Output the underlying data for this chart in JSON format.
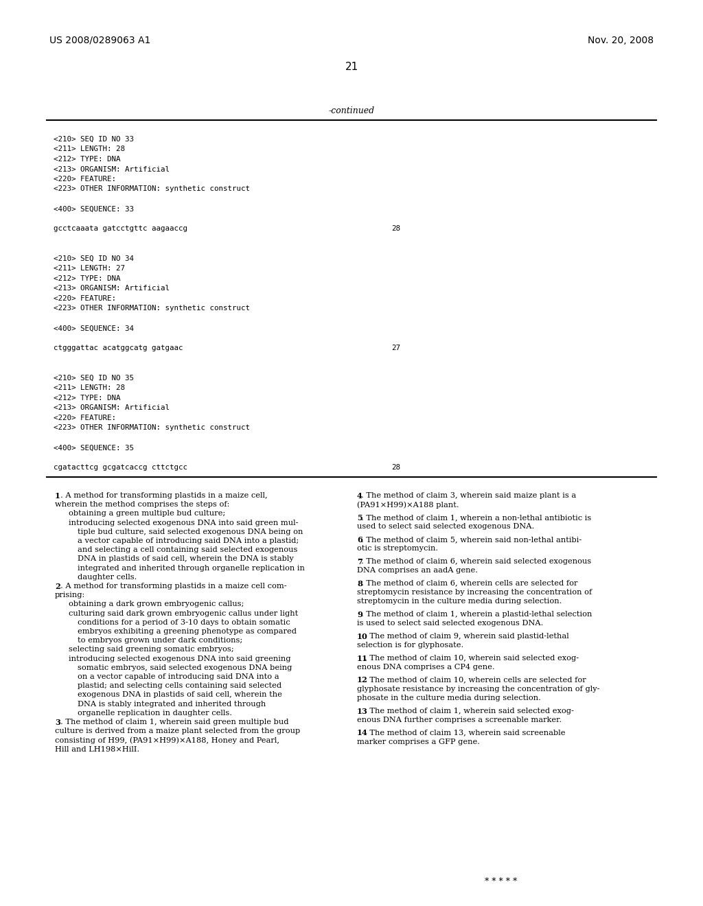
{
  "page_width": 10.24,
  "page_height": 13.2,
  "bg_color": "#ffffff",
  "header_left": "US 2008/0289063 A1",
  "header_right": "Nov. 20, 2008",
  "page_number": "21",
  "continued_label": "-continued",
  "mono_lines": [
    {
      "text": "<210> SEQ ID NO 33",
      "seq_num": ""
    },
    {
      "text": "<211> LENGTH: 28",
      "seq_num": ""
    },
    {
      "text": "<212> TYPE: DNA",
      "seq_num": ""
    },
    {
      "text": "<213> ORGANISM: Artificial",
      "seq_num": ""
    },
    {
      "text": "<220> FEATURE:",
      "seq_num": ""
    },
    {
      "text": "<223> OTHER INFORMATION: synthetic construct",
      "seq_num": ""
    },
    {
      "text": "",
      "seq_num": ""
    },
    {
      "text": "<400> SEQUENCE: 33",
      "seq_num": ""
    },
    {
      "text": "",
      "seq_num": ""
    },
    {
      "text": "gcctcaaata gatcctgttc aagaaccg",
      "seq_num": "28"
    },
    {
      "text": "",
      "seq_num": ""
    },
    {
      "text": "",
      "seq_num": ""
    },
    {
      "text": "<210> SEQ ID NO 34",
      "seq_num": ""
    },
    {
      "text": "<211> LENGTH: 27",
      "seq_num": ""
    },
    {
      "text": "<212> TYPE: DNA",
      "seq_num": ""
    },
    {
      "text": "<213> ORGANISM: Artificial",
      "seq_num": ""
    },
    {
      "text": "<220> FEATURE:",
      "seq_num": ""
    },
    {
      "text": "<223> OTHER INFORMATION: synthetic construct",
      "seq_num": ""
    },
    {
      "text": "",
      "seq_num": ""
    },
    {
      "text": "<400> SEQUENCE: 34",
      "seq_num": ""
    },
    {
      "text": "",
      "seq_num": ""
    },
    {
      "text": "ctgggattac acatggcatg gatgaac",
      "seq_num": "27"
    },
    {
      "text": "",
      "seq_num": ""
    },
    {
      "text": "",
      "seq_num": ""
    },
    {
      "text": "<210> SEQ ID NO 35",
      "seq_num": ""
    },
    {
      "text": "<211> LENGTH: 28",
      "seq_num": ""
    },
    {
      "text": "<212> TYPE: DNA",
      "seq_num": ""
    },
    {
      "text": "<213> ORGANISM: Artificial",
      "seq_num": ""
    },
    {
      "text": "<220> FEATURE:",
      "seq_num": ""
    },
    {
      "text": "<223> OTHER INFORMATION: synthetic construct",
      "seq_num": ""
    },
    {
      "text": "",
      "seq_num": ""
    },
    {
      "text": "<400> SEQUENCE: 35",
      "seq_num": ""
    },
    {
      "text": "",
      "seq_num": ""
    },
    {
      "text": "cgatacttcg gcgatcaccg cttctgcc",
      "seq_num": "28"
    }
  ],
  "left_claims": [
    {
      "type": "claim_start",
      "num": "1",
      "lines": [
        ". A method for transforming plastids in a maize cell,",
        "wherein the method comprises the steps of:"
      ]
    },
    {
      "type": "indent1",
      "lines": [
        "obtaining a green multiple bud culture;"
      ]
    },
    {
      "type": "indent1_wrap",
      "lines": [
        "introducing selected exogenous DNA into said green mul-",
        "tiple bud culture, said selected exogenous DNA being on",
        "a vector capable of introducing said DNA into a plastid;",
        "and selecting a cell containing said selected exogenous",
        "DNA in plastids of said cell, wherein the DNA is stably",
        "integrated and inherited through organelle replication in",
        "daughter cells."
      ]
    },
    {
      "type": "claim_start",
      "num": "2",
      "lines": [
        ". A method for transforming plastids in a maize cell com-",
        "prising:"
      ]
    },
    {
      "type": "indent1",
      "lines": [
        "obtaining a dark grown embryogenic callus;"
      ]
    },
    {
      "type": "indent1_wrap",
      "lines": [
        "culturing said dark grown embryogenic callus under light",
        "conditions for a period of 3-10 days to obtain somatic",
        "embryos exhibiting a greening phenotype as compared",
        "to embryos grown under dark conditions;"
      ]
    },
    {
      "type": "indent1",
      "lines": [
        "selecting said greening somatic embryos;"
      ]
    },
    {
      "type": "indent1_wrap",
      "lines": [
        "introducing selected exogenous DNA into said greening",
        "somatic embryos, said selected exogenous DNA being",
        "on a vector capable of introducing said DNA into a",
        "plastid; and selecting cells containing said selected",
        "exogenous DNA in plastids of said cell, wherein the",
        "DNA is stably integrated and inherited through",
        "organelle replication in daughter cells."
      ]
    },
    {
      "type": "claim_start_wrap",
      "num": "3",
      "lines": [
        ". The method of claim 1, wherein said green multiple bud",
        "culture is derived from a maize plant selected from the group",
        "consisting of H99, (PA91×H99)×A188, Honey and Pearl,",
        "Hill and LH198×HilI."
      ]
    }
  ],
  "right_claims": [
    {
      "num": "4",
      "lines": [
        ". The method of claim 3, wherein said maize plant is a",
        "(PA91×H99)×A188 plant."
      ]
    },
    {
      "num": "5",
      "lines": [
        ". The method of claim 1, wherein a non-lethal antibiotic is",
        "used to select said selected exogenous DNA."
      ]
    },
    {
      "num": "6",
      "lines": [
        ". The method of claim 5, wherein said non-lethal antibi-",
        "otic is streptomycin."
      ]
    },
    {
      "num": "7",
      "lines": [
        ". The method of claim 6, wherein said selected exogenous",
        "DNA comprises an aadA gene."
      ]
    },
    {
      "num": "8",
      "lines": [
        ". The method of claim 6, wherein cells are selected for",
        "streptomycin resistance by increasing the concentration of",
        "streptomycin in the culture media during selection."
      ]
    },
    {
      "num": "9",
      "lines": [
        ". The method of claim 1, wherein a plastid-lethal selection",
        "is used to select said selected exogenous DNA."
      ]
    },
    {
      "num": "10",
      "lines": [
        ". The method of claim 9, wherein said plastid-lethal",
        "selection is for glyphosate."
      ]
    },
    {
      "num": "11",
      "lines": [
        ". The method of claim 10, wherein said selected exog-",
        "enous DNA comprises a CP4 gene."
      ]
    },
    {
      "num": "12",
      "lines": [
        ". The method of claim 10, wherein cells are selected for",
        "glyphosate resistance by increasing the concentration of gly-",
        "phosate in the culture media during selection."
      ]
    },
    {
      "num": "13",
      "lines": [
        ". The method of claim 1, wherein said selected exog-",
        "enous DNA further comprises a screenable marker."
      ]
    },
    {
      "num": "14",
      "lines": [
        ". The method of claim 13, wherein said screenable",
        "marker comprises a GFP gene."
      ]
    }
  ],
  "stars": "* * * * *"
}
